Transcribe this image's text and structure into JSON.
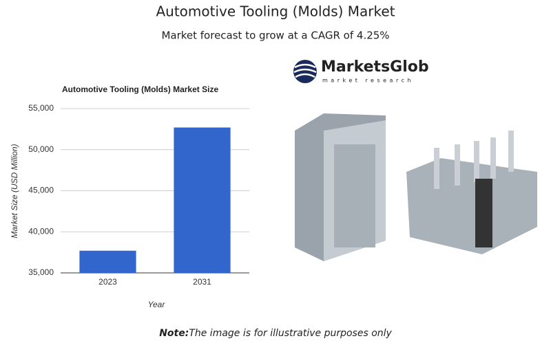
{
  "header": {
    "title": "Automotive Tooling (Molds) Market",
    "subtitle": "Market forecast to grow at a CAGR of 4.25%"
  },
  "chart_data": {
    "type": "bar",
    "title": "Automotive Tooling (Molds) Market Size",
    "x_label": "Year",
    "y_label": "Market Size (USD Million)",
    "categories": [
      "2023",
      "2031"
    ],
    "values": [
      37700,
      52700
    ],
    "color": "#3366cc",
    "ylim": [
      35000,
      55000
    ],
    "yticks": [
      {
        "value": 35000,
        "label": "35,000"
      },
      {
        "value": 40000,
        "label": "40,000"
      },
      {
        "value": 45000,
        "label": "45,000"
      },
      {
        "value": 50000,
        "label": "50,000"
      },
      {
        "value": 55000,
        "label": "55,000"
      }
    ],
    "grid": true
  },
  "logo": {
    "name": "MarketsGlob",
    "tagline": "market research"
  },
  "note": {
    "label": "Note:",
    "text": "The image is for illustrative purposes only"
  }
}
